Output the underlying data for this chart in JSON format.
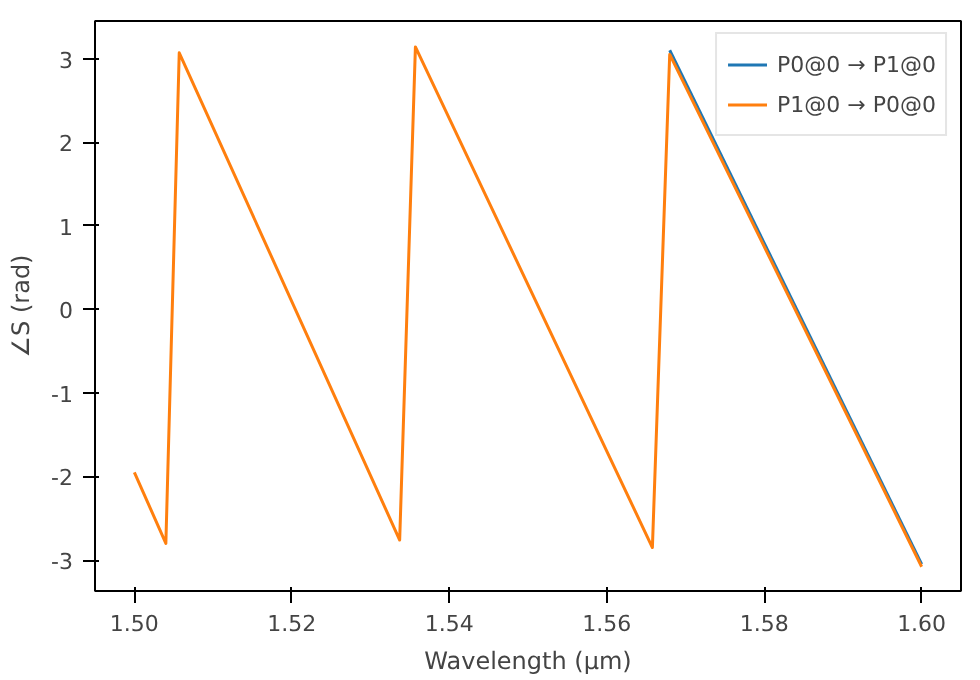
{
  "chart_data": {
    "type": "line",
    "xlabel": "Wavelength (µm)",
    "ylabel": "∠S (rad)",
    "xlim": [
      1.495,
      1.605
    ],
    "ylim": [
      -3.37,
      3.45
    ],
    "xticks": [
      {
        "value": 1.5,
        "label": "1.50"
      },
      {
        "value": 1.52,
        "label": "1.52"
      },
      {
        "value": 1.54,
        "label": "1.54"
      },
      {
        "value": 1.56,
        "label": "1.56"
      },
      {
        "value": 1.58,
        "label": "1.58"
      },
      {
        "value": 1.6,
        "label": "1.60"
      }
    ],
    "yticks": [
      -3,
      -2,
      -1,
      0,
      1,
      2,
      3
    ],
    "grid": false,
    "legend": "top right",
    "series": [
      {
        "name": "P0@0 → P1@0",
        "color": "#1f77b4",
        "x": [
          1.568,
          1.6
        ],
        "values": [
          3.1,
          -3.05
        ]
      },
      {
        "name": "P1@0 → P0@0",
        "color": "#ff7f0e",
        "x": [
          1.5,
          1.504,
          1.5057,
          1.5337,
          1.5357,
          1.5658,
          1.568,
          1.6
        ],
        "values": [
          -1.95,
          -2.8,
          3.07,
          -2.76,
          3.14,
          -2.85,
          3.05,
          -3.08
        ]
      }
    ]
  }
}
